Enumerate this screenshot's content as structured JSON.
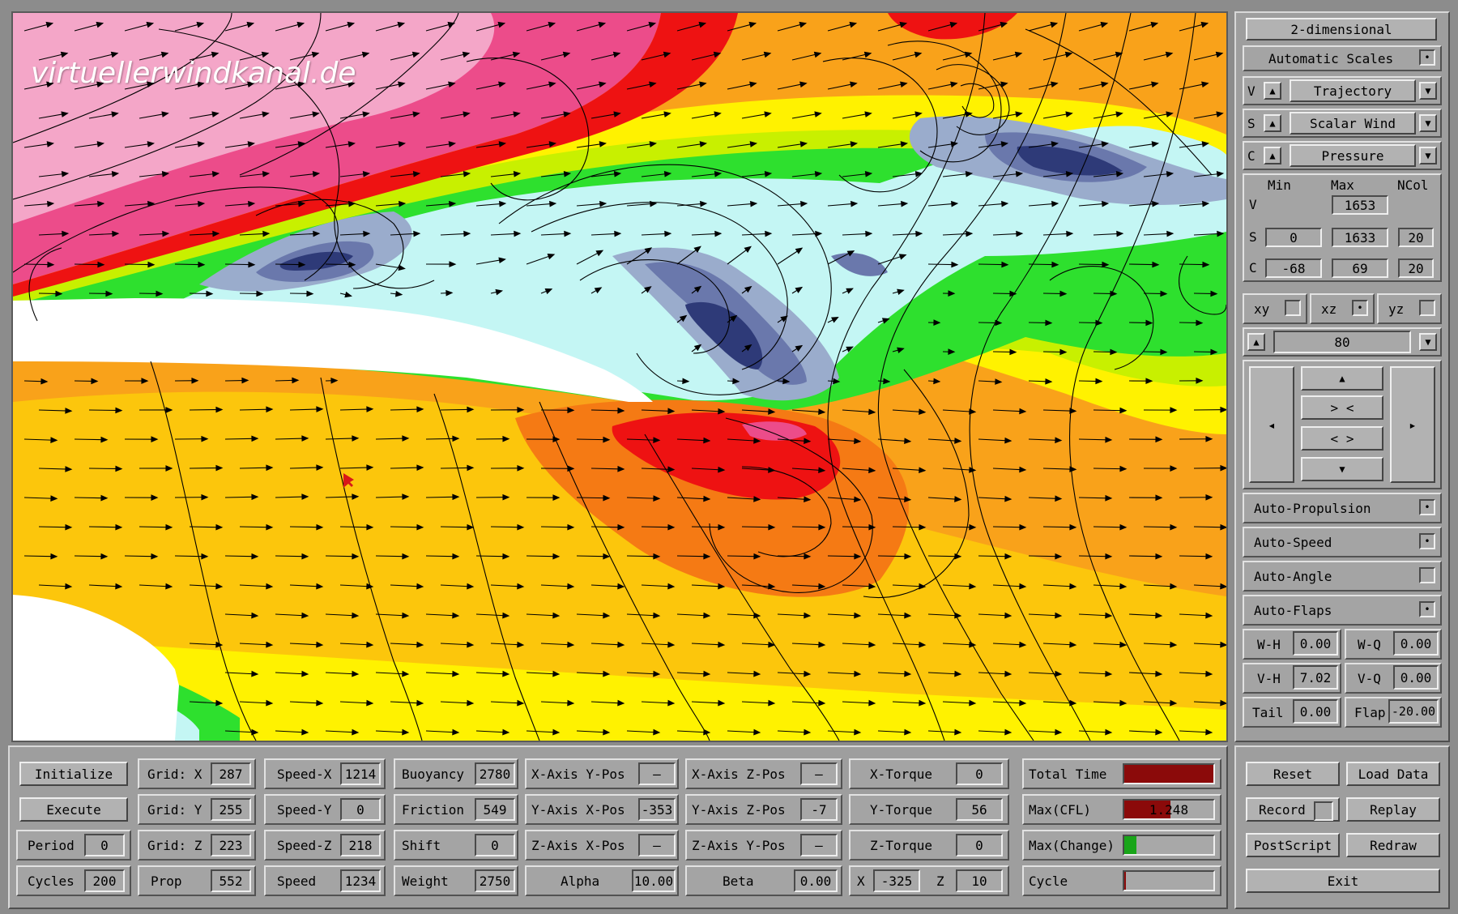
{
  "watermark": "virtuellerwindkanal.de",
  "colors": {
    "magenta": "#ec4c8a",
    "pink": "#f4a6c8",
    "red": "#ee1212",
    "dark_orange": "#f57a14",
    "orange": "#f9a21a",
    "yellow_orange": "#fcc60c",
    "yellow": "#fff200",
    "yellow_green": "#c8f000",
    "green": "#2ee02e",
    "cyan": "#c4f6f4",
    "light_blue": "#9aaccc",
    "mid_blue": "#6a78ac",
    "dark_blue": "#2e3a78",
    "window_bg": "#8c8c8c",
    "progress_red": "#8b0a0a",
    "progress_green": "#19a519",
    "cursor_red": "#d81818"
  },
  "right_panel": {
    "view_mode": "2-dimensional",
    "auto_scales": {
      "label": "Automatic Scales",
      "checked": true
    },
    "v_row": {
      "letter": "V",
      "value": "Trajectory",
      "up_icon": "▲",
      "dropdown_icon": "▼"
    },
    "s_row": {
      "letter": "S",
      "value": "Scalar Wind",
      "up_icon": "▲",
      "dropdown_icon": "▼"
    },
    "c_row": {
      "letter": "C",
      "value": "Pressure",
      "up_icon": "▲",
      "dropdown_icon": "▼"
    },
    "range_headers": {
      "min": "Min",
      "max": "Max",
      "ncol": "NCol"
    },
    "range_rows": [
      {
        "letter": "V",
        "min": "",
        "max": "1653",
        "ncol": ""
      },
      {
        "letter": "S",
        "min": "0",
        "max": "1633",
        "ncol": "20"
      },
      {
        "letter": "C",
        "min": "-68",
        "max": "69",
        "ncol": "20"
      }
    ],
    "planes": [
      {
        "label": "xy",
        "checked": false
      },
      {
        "label": "xz",
        "checked": true
      },
      {
        "label": "yz",
        "checked": false
      }
    ],
    "slice": {
      "value": "80",
      "up_icon": "▲",
      "down_icon": "▼"
    },
    "nav": {
      "left": "◂",
      "right": "▸",
      "up": "▲",
      "down": "▼",
      "zoom_in": "> <",
      "zoom_out": "< >"
    },
    "toggles": [
      {
        "label": "Auto-Propulsion",
        "checked": true
      },
      {
        "label": "Auto-Speed",
        "checked": true
      },
      {
        "label": "Auto-Angle",
        "checked": false
      },
      {
        "label": "Auto-Flaps",
        "checked": true
      }
    ],
    "wh": {
      "label": "W-H",
      "value": "0.00"
    },
    "wq": {
      "label": "W-Q",
      "value": "0.00"
    },
    "vh": {
      "label": "V-H",
      "value": "7.02"
    },
    "vq": {
      "label": "V-Q",
      "value": "0.00"
    },
    "tail": {
      "label": "Tail",
      "value": "0.00"
    },
    "flap": {
      "label": "Flap",
      "value": "-20.00"
    },
    "checkmark": "•"
  },
  "bottom": {
    "initialize": "Initialize",
    "execute": "Execute",
    "period": {
      "label": "Period",
      "value": "0"
    },
    "cycles": {
      "label": "Cycles",
      "value": "200"
    },
    "grid_x": {
      "label": "Grid: X",
      "value": "287"
    },
    "grid_y": {
      "label": "Grid: Y",
      "value": "255"
    },
    "grid_z": {
      "label": "Grid: Z",
      "value": "223"
    },
    "prop": {
      "label": "Prop",
      "value": "552"
    },
    "speed_x": {
      "label": "Speed-X",
      "value": "1214"
    },
    "speed_y": {
      "label": "Speed-Y",
      "value": "0"
    },
    "speed_z": {
      "label": "Speed-Z",
      "value": "218"
    },
    "speed": {
      "label": "Speed",
      "value": "1234"
    },
    "buoyancy": {
      "label": "Buoyancy",
      "value": "2780"
    },
    "friction": {
      "label": "Friction",
      "value": "549"
    },
    "shift": {
      "label": "Shift",
      "value": "0"
    },
    "weight": {
      "label": "Weight",
      "value": "2750"
    },
    "x_axis_y_pos": {
      "label": "X-Axis Y-Pos",
      "value": "—"
    },
    "y_axis_x_pos": {
      "label": "Y-Axis X-Pos",
      "value": "-353"
    },
    "z_axis_x_pos": {
      "label": "Z-Axis X-Pos",
      "value": "—"
    },
    "alpha": {
      "label": "Alpha",
      "value": "10.00"
    },
    "x_axis_z_pos": {
      "label": "X-Axis Z-Pos",
      "value": "—"
    },
    "y_axis_z_pos": {
      "label": "Y-Axis Z-Pos",
      "value": "-7"
    },
    "z_axis_y_pos": {
      "label": "Z-Axis Y-Pos",
      "value": "—"
    },
    "beta": {
      "label": "Beta",
      "value": "0.00"
    },
    "x_torque": {
      "label": "X-Torque",
      "value": "0"
    },
    "y_torque": {
      "label": "Y-Torque",
      "value": "56"
    },
    "z_torque": {
      "label": "Z-Torque",
      "value": "0"
    },
    "x": {
      "label": "X",
      "value": "-325"
    },
    "z": {
      "label": "Z",
      "value": "10"
    },
    "total_time": {
      "label": "Total Time",
      "fraction": 1.0
    },
    "max_cfl": {
      "label": "Max(CFL)",
      "value": "1.248",
      "fraction": 0.52
    },
    "max_change": {
      "label": "Max(Change)",
      "fraction": 0.14
    },
    "cycle": {
      "label": "Cycle",
      "fraction": 0.02
    },
    "reset": "Reset",
    "load_data": "Load Data",
    "record": "Record",
    "replay": "Replay",
    "postscript": "PostScript",
    "redraw": "Redraw",
    "exit": "Exit"
  }
}
